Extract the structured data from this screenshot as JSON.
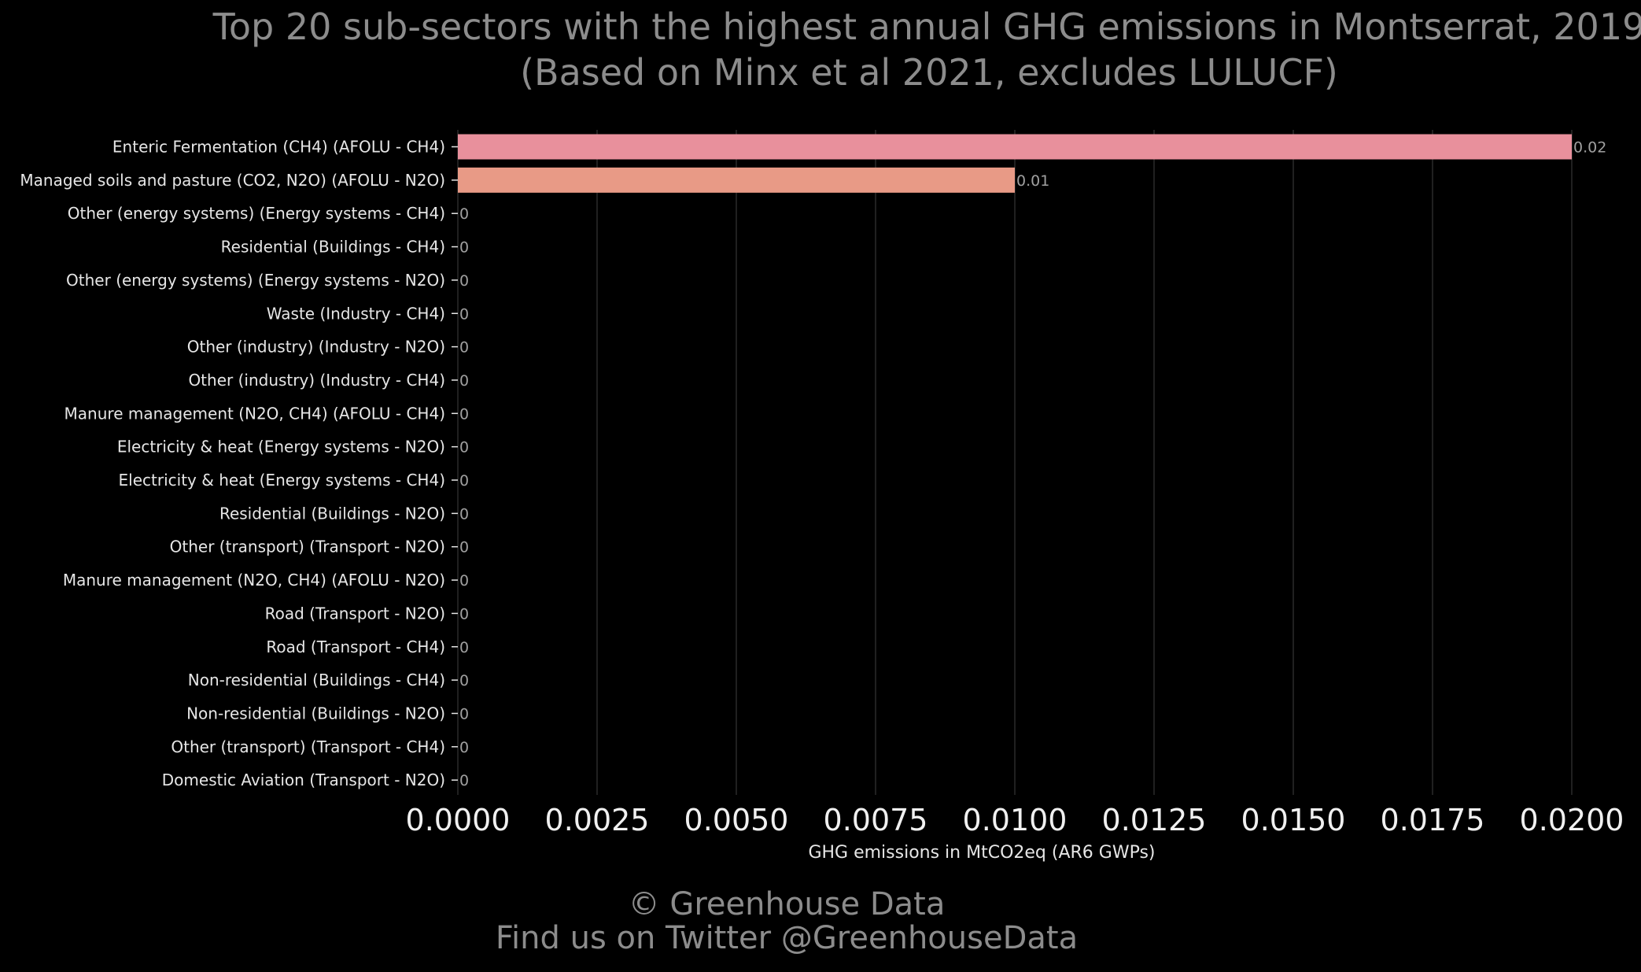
{
  "colors": {
    "background": "#000000",
    "title": "#8c8c8c",
    "grid": "#2a2a2a",
    "label": "#e6e6e6",
    "tick": "#f0f0f0",
    "value_label": "#a0a0a0",
    "footer": "#8c8c8c",
    "bar_1": "#e8909c",
    "bar_2": "#e89a86"
  },
  "chart_data": {
    "type": "bar",
    "orientation": "horizontal",
    "title": "Top 20 sub-sectors with the highest annual GHG emissions in Montserrat, 2019",
    "subtitle": "(Based on Minx et al 2021, excludes LULUCF)",
    "xlabel": "GHG emissions in MtCO2eq (AR6 GWPs)",
    "ylabel": "",
    "xlim": [
      0,
      0.02
    ],
    "x_ticks": [
      "0.0000",
      "0.0025",
      "0.0050",
      "0.0075",
      "0.0100",
      "0.0125",
      "0.0150",
      "0.0175",
      "0.0200"
    ],
    "grid": "vertical",
    "categories": [
      "Enteric Fermentation (CH4) (AFOLU - CH4)",
      "Managed soils and pasture (CO2, N2O) (AFOLU - N2O)",
      "Other (energy systems) (Energy systems - CH4)",
      "Residential (Buildings - CH4)",
      "Other (energy systems) (Energy systems - N2O)",
      "Waste (Industry - CH4)",
      "Other (industry) (Industry - N2O)",
      "Other (industry) (Industry - CH4)",
      "Manure management (N2O, CH4) (AFOLU - CH4)",
      "Electricity & heat (Energy systems - N2O)",
      "Electricity & heat (Energy systems - CH4)",
      "Residential (Buildings - N2O)",
      "Other (transport) (Transport - N2O)",
      "Manure management (N2O, CH4) (AFOLU - N2O)",
      "Road (Transport - N2O)",
      "Road (Transport - CH4)",
      "Non-residential (Buildings - CH4)",
      "Non-residential (Buildings - N2O)",
      "Other (transport) (Transport - CH4)",
      "Domestic Aviation (Transport - N2O)"
    ],
    "values": [
      0.02,
      0.01,
      0,
      0,
      0,
      0,
      0,
      0,
      0,
      0,
      0,
      0,
      0,
      0,
      0,
      0,
      0,
      0,
      0,
      0
    ],
    "value_labels": [
      "0.02",
      "0.01",
      "0",
      "0",
      "0",
      "0",
      "0",
      "0",
      "0",
      "0",
      "0",
      "0",
      "0",
      "0",
      "0",
      "0",
      "0",
      "0",
      "0",
      "0"
    ]
  },
  "footer": {
    "copyright": "© Greenhouse Data",
    "twitter": "Find us on Twitter @GreenhouseData"
  }
}
